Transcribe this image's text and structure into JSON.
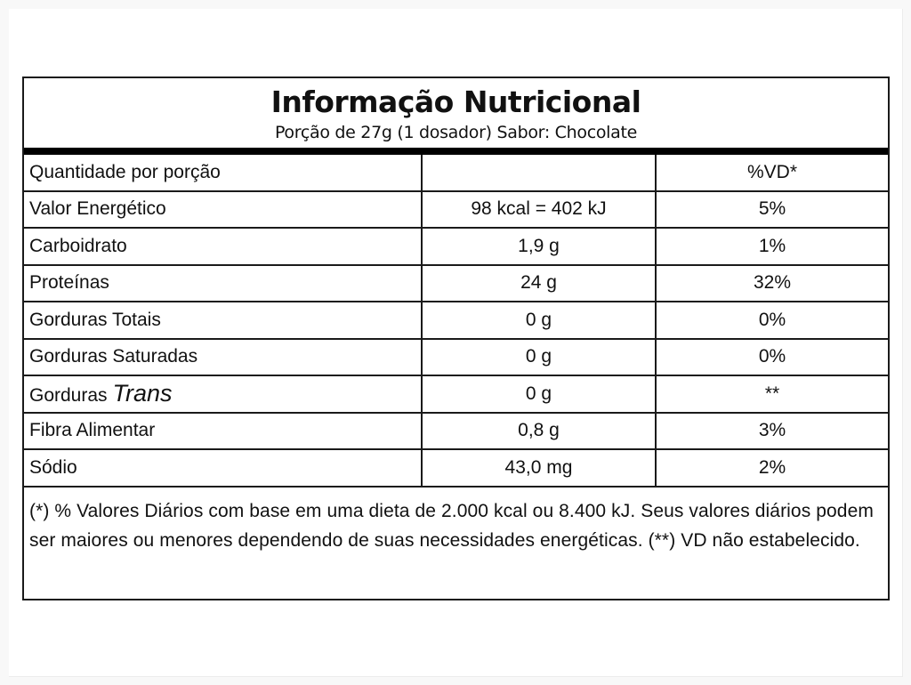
{
  "label": {
    "title": "Informação Nutricional",
    "subtitle": "Porção de 27g (1 dosador) Sabor: Chocolate"
  },
  "table": {
    "header": {
      "col1": "Quantidade por porção",
      "col2": "",
      "col3": "%VD*"
    },
    "rows": [
      {
        "name": "Valor Energético",
        "amount": "98 kcal = 402 kJ",
        "vd": "5%"
      },
      {
        "name": "Carboidrato",
        "amount": "1,9 g",
        "vd": "1%"
      },
      {
        "name": "Proteínas",
        "amount": "24 g",
        "vd": "32%"
      },
      {
        "name": "Gorduras Totais",
        "amount": "0 g",
        "vd": "0%"
      },
      {
        "name": "Gorduras Saturadas",
        "amount": "0 g",
        "vd": "0%"
      },
      {
        "name": "Gorduras",
        "name_emphasis": "Trans",
        "amount": "0 g",
        "vd": "**"
      },
      {
        "name": "Fibra Alimentar",
        "amount": "0,8 g",
        "vd": "3%"
      },
      {
        "name": "Sódio",
        "amount": "43,0 mg",
        "vd": "2%"
      }
    ]
  },
  "footnote": "(*) % Valores Diários com base em uma dieta de 2.000 kcal ou 8.400 kJ. Seus valores diários podem ser maiores ou menores dependendo de suas necessidades energéticas. (**) VD não estabelecido."
}
